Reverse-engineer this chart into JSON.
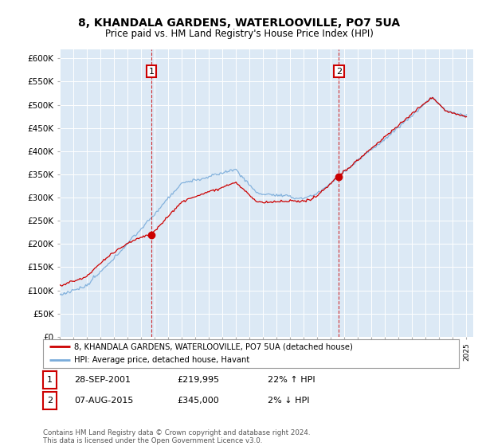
{
  "title1": "8, KHANDALA GARDENS, WATERLOOVILLE, PO7 5UA",
  "title2": "Price paid vs. HM Land Registry's House Price Index (HPI)",
  "bg_color": "#dce9f5",
  "red_color": "#cc0000",
  "blue_color": "#7aacda",
  "ylim": [
    0,
    620000
  ],
  "yticks": [
    0,
    50000,
    100000,
    150000,
    200000,
    250000,
    300000,
    350000,
    400000,
    450000,
    500000,
    550000,
    600000
  ],
  "ytick_labels": [
    "£0",
    "£50K",
    "£100K",
    "£150K",
    "£200K",
    "£250K",
    "£300K",
    "£350K",
    "£400K",
    "£450K",
    "£500K",
    "£550K",
    "£600K"
  ],
  "legend_label_red": "8, KHANDALA GARDENS, WATERLOOVILLE, PO7 5UA (detached house)",
  "legend_label_blue": "HPI: Average price, detached house, Havant",
  "annotation1_date": "28-SEP-2001",
  "annotation1_price": "£219,995",
  "annotation1_hpi": "22% ↑ HPI",
  "annotation2_date": "07-AUG-2015",
  "annotation2_price": "£345,000",
  "annotation2_hpi": "2% ↓ HPI",
  "footer": "Contains HM Land Registry data © Crown copyright and database right 2024.\nThis data is licensed under the Open Government Licence v3.0.",
  "vline1_year": 2001.75,
  "vline2_year": 2015.58,
  "purchase1_price": 219995,
  "purchase2_price": 345000
}
